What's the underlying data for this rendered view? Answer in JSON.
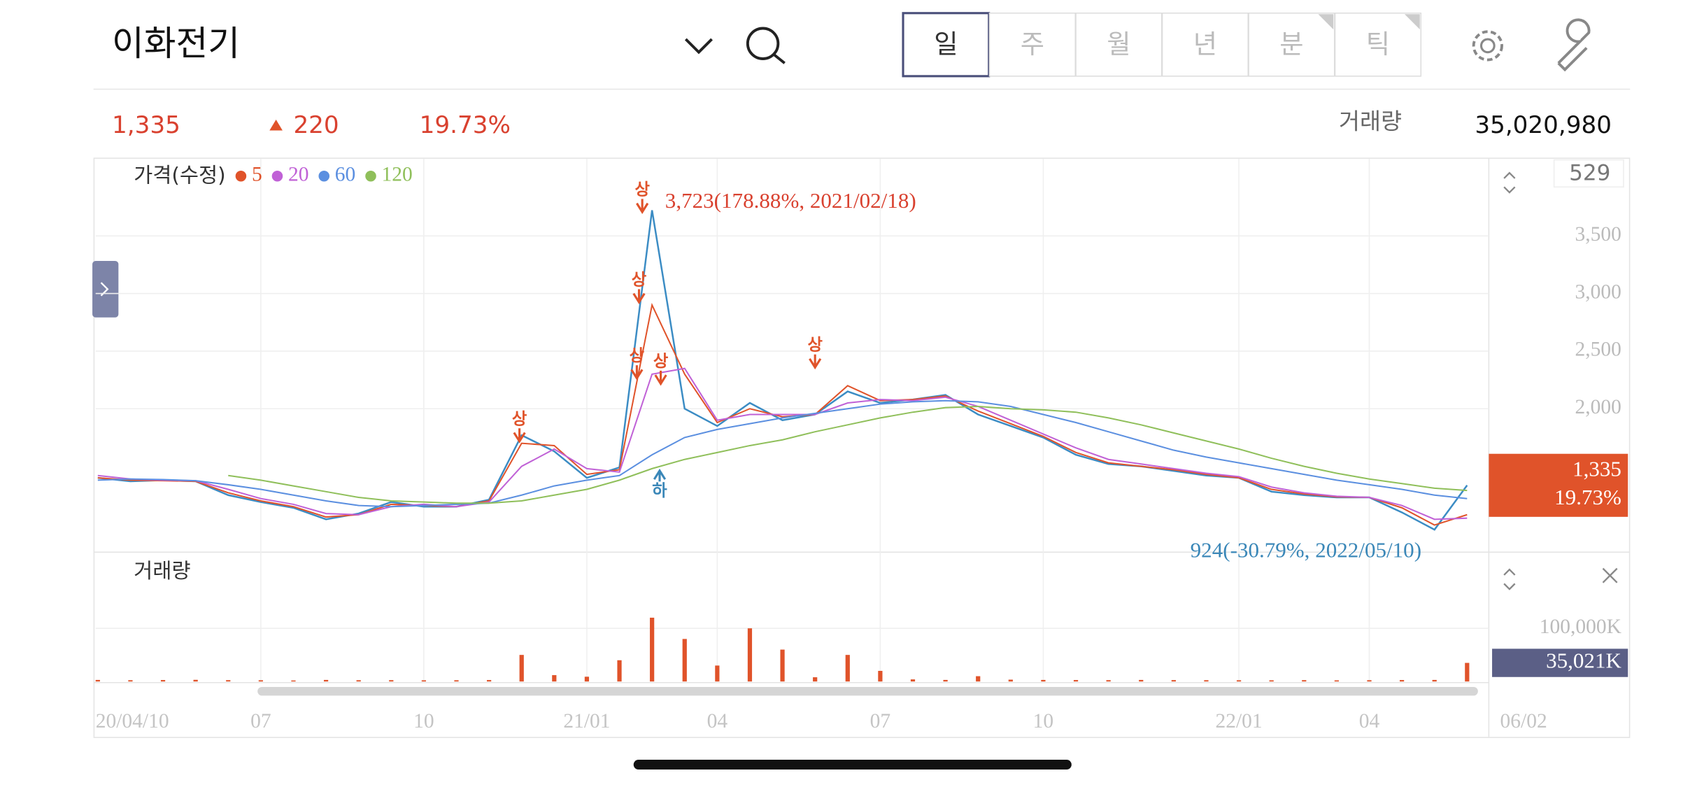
{
  "header": {
    "title": "이화전기",
    "tabs": [
      "일",
      "주",
      "월",
      "년",
      "분",
      "틱"
    ]
  },
  "quote": {
    "price": "1,335",
    "change": "220",
    "rate": "19.73%",
    "volume_label": "거래량",
    "volume": "35,020,980"
  },
  "chart_data": {
    "type": "line",
    "legend_title": "가격(수정)",
    "scale_box": "529",
    "categories": [
      "20/04/10",
      null,
      null,
      null,
      null,
      "07",
      null,
      null,
      null,
      null,
      "10",
      null,
      null,
      null,
      null,
      "21/01",
      null,
      null,
      null,
      "04",
      null,
      null,
      null,
      null,
      "07",
      null,
      null,
      null,
      null,
      "10",
      null,
      null,
      null,
      null,
      null,
      "22/01",
      null,
      null,
      null,
      "04",
      null,
      null,
      "06/02"
    ],
    "series": [
      {
        "name": "가격(수정)",
        "color": "#3b8cc4",
        "values": [
          1400,
          1370,
          1380,
          1370,
          1250,
          1190,
          1140,
          1040,
          1090,
          1190,
          1150,
          1150,
          1210,
          1770,
          1630,
          1400,
          1490,
          3723,
          2000,
          1850,
          2050,
          1900,
          1950,
          2150,
          2050,
          2080,
          2120,
          1950,
          1850,
          1750,
          1600,
          1520,
          1500,
          1460,
          1420,
          1400,
          1280,
          1250,
          1230,
          1230,
          1100,
          950,
          1335
        ]
      },
      {
        "name": "5",
        "color": "#e0532a",
        "values": [
          1400,
          1380,
          1375,
          1370,
          1270,
          1200,
          1150,
          1060,
          1080,
          1170,
          1160,
          1150,
          1200,
          1700,
          1680,
          1430,
          1470,
          2900,
          2300,
          1880,
          2000,
          1930,
          1950,
          2200,
          2070,
          2080,
          2110,
          1980,
          1870,
          1760,
          1620,
          1530,
          1500,
          1470,
          1430,
          1400,
          1300,
          1260,
          1235,
          1230,
          1140,
          990,
          1080
        ]
      },
      {
        "name": "20",
        "color": "#c061d6",
        "values": [
          1420,
          1390,
          1380,
          1375,
          1300,
          1220,
          1170,
          1090,
          1080,
          1150,
          1170,
          1150,
          1190,
          1500,
          1650,
          1480,
          1450,
          2300,
          2350,
          1900,
          1950,
          1950,
          1950,
          2050,
          2080,
          2070,
          2100,
          2020,
          1900,
          1780,
          1660,
          1560,
          1520,
          1480,
          1440,
          1410,
          1320,
          1270,
          1240,
          1230,
          1160,
          1040,
          1050
        ]
      },
      {
        "name": "60",
        "color": "#5b8fe0",
        "values": [
          1380,
          1390,
          1385,
          1375,
          1340,
          1300,
          1250,
          1200,
          1160,
          1150,
          1160,
          1170,
          1180,
          1250,
          1330,
          1380,
          1420,
          1600,
          1750,
          1820,
          1870,
          1920,
          1960,
          2000,
          2040,
          2060,
          2070,
          2060,
          2020,
          1950,
          1880,
          1800,
          1720,
          1640,
          1580,
          1530,
          1480,
          1430,
          1380,
          1340,
          1300,
          1250,
          1220
        ]
      },
      {
        "name": "120",
        "color": "#8fbf5a",
        "values": [
          null,
          null,
          null,
          null,
          1420,
          1380,
          1330,
          1280,
          1230,
          1200,
          1190,
          1180,
          1180,
          1200,
          1250,
          1300,
          1380,
          1480,
          1560,
          1620,
          1680,
          1730,
          1800,
          1860,
          1920,
          1970,
          2010,
          2020,
          2000,
          1990,
          1970,
          1920,
          1860,
          1790,
          1720,
          1650,
          1570,
          1500,
          1440,
          1390,
          1350,
          1310,
          1290
        ]
      }
    ],
    "ylim": [
      783,
      4151
    ],
    "yticks": [
      {
        "value": 2000,
        "label": "2,000"
      },
      {
        "value": 2500,
        "label": "2,500"
      },
      {
        "value": 3000,
        "label": "3,000"
      },
      {
        "value": 3500,
        "label": "3,500"
      }
    ],
    "grid": true,
    "annotations": [
      {
        "value": 3723,
        "label": "3,723(178.88%, 2021/02/18)"
      },
      {
        "value": 924,
        "label": "924(-30.79%, 2022/05/10)"
      }
    ],
    "markers": [
      "상",
      "상",
      "상",
      "상",
      "상",
      "상",
      "하"
    ],
    "current": {
      "value": 1335,
      "label": "1,335",
      "rate": "19.73%"
    },
    "volume": {
      "title": "거래량",
      "color": "#e0532a",
      "values": [
        3000,
        2500,
        2800,
        3200,
        2600,
        2400,
        2000,
        3000,
        2500,
        2600,
        2300,
        2400,
        2800,
        50000,
        12000,
        9000,
        40000,
        120000,
        80000,
        30000,
        100000,
        60000,
        8000,
        50000,
        20000,
        4000,
        3000,
        10000,
        3500,
        3000,
        2800,
        2600,
        3000,
        2700,
        2500,
        2400,
        2300,
        2600,
        2200,
        2500,
        2800,
        3000,
        35021
      ],
      "ylim": [
        0,
        235000
      ],
      "yticks": [
        {
          "value": 100000,
          "label": "100,000K"
        }
      ],
      "current": {
        "value": 35021,
        "label": "35,021K"
      }
    }
  }
}
